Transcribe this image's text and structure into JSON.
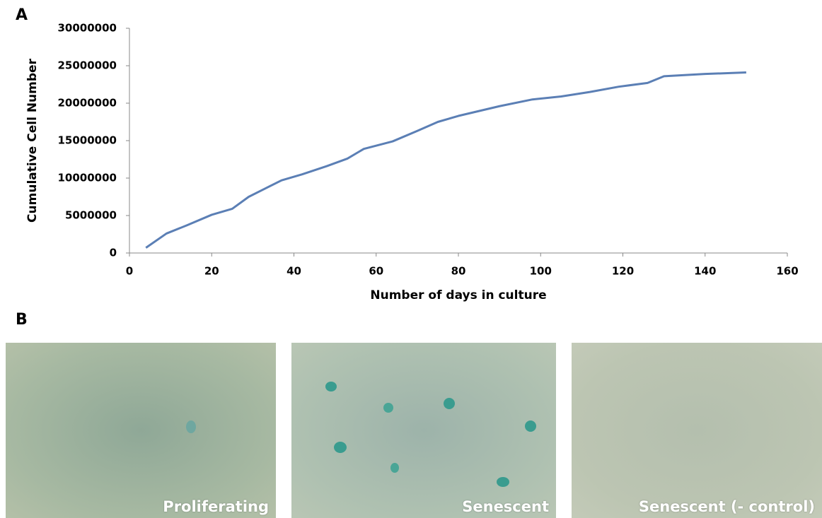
{
  "chart_data": {
    "type": "line",
    "panel_label": "A",
    "x_label": "Number of days in culture",
    "y_label": "Cumulative Cell Number",
    "x": [
      4,
      9,
      14,
      20,
      25,
      29,
      33,
      37,
      42,
      48,
      53,
      57,
      64,
      70,
      75,
      80,
      90,
      98,
      105,
      112,
      119,
      126,
      130,
      140,
      150
    ],
    "values": [
      700000,
      2600000,
      3700000,
      5100000,
      5900000,
      7500000,
      8600000,
      9700000,
      10500000,
      11600000,
      12600000,
      13900000,
      14900000,
      16300000,
      17500000,
      18300000,
      19600000,
      20500000,
      20900000,
      21500000,
      22200000,
      22700000,
      23600000,
      23900000,
      24100000
    ],
    "color": "#5b7fb5",
    "xlim": [
      0,
      160
    ],
    "xticks": [
      0,
      20,
      40,
      60,
      80,
      100,
      120,
      140,
      160
    ],
    "ylim": [
      0,
      30000000
    ],
    "yticks": [
      0,
      5000000,
      10000000,
      15000000,
      20000000,
      25000000,
      30000000
    ]
  },
  "panel_b": {
    "label": "B",
    "images": [
      {
        "caption": "Proliferating"
      },
      {
        "caption": "Senescent"
      },
      {
        "caption": "Senescent (- control)"
      }
    ]
  }
}
